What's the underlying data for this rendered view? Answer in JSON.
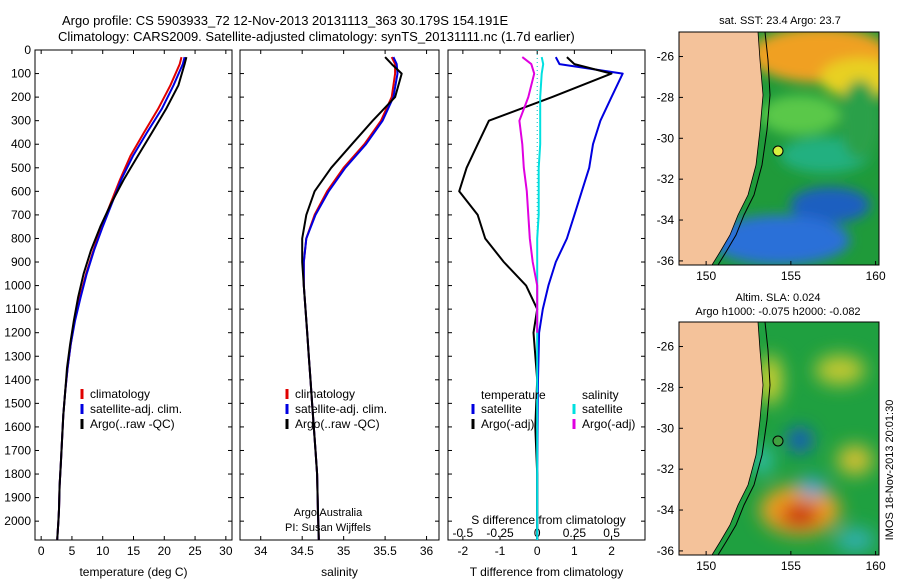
{
  "header": {
    "line1": "Argo profile: CS 5903933_72  12-Nov-2013 20131113_363  30.179S 154.191E",
    "line2": "Climatology: CARS2009. Satellite-adjusted climatology: synTS_20131111.nc (1.7d earlier)"
  },
  "footer": {
    "stamp": "IMOS 18-Nov-2013 20:01:30"
  },
  "colors": {
    "climatology": "#e00000",
    "satellite": "#0000e0",
    "argo": "#000000",
    "salinity_satellite": "#00e0e0",
    "salinity_argo": "#e000e0",
    "land": "#f4c29a"
  },
  "chart_data": [
    {
      "id": "temperature",
      "type": "line",
      "xlabel": "temperature (deg C)",
      "ylabel": "",
      "xlim": [
        -1,
        31
      ],
      "ylim": [
        2080,
        0
      ],
      "xticks": [
        0,
        5,
        10,
        15,
        20,
        25,
        30
      ],
      "yticks": [
        0,
        100,
        200,
        300,
        400,
        500,
        600,
        700,
        800,
        900,
        1000,
        1100,
        1200,
        1300,
        1400,
        1500,
        1600,
        1700,
        1800,
        1900,
        2000
      ],
      "grid": false,
      "legend_position": "lower-left",
      "legend": [
        "climatology",
        "satellite-adj. clim.",
        "Argo(..raw -QC)"
      ],
      "series": [
        {
          "name": "climatology",
          "color": "#e00000",
          "x": [
            22.8,
            22.5,
            21.0,
            19.0,
            16.7,
            14.5,
            12.8,
            11.3,
            9.8,
            8.5,
            7.3,
            6.3,
            5.4,
            4.8,
            4.3,
            3.9,
            3.6,
            3.4,
            3.2,
            3.0,
            2.9,
            2.8,
            2.7,
            2.6
          ],
          "y": [
            30,
            60,
            150,
            250,
            350,
            450,
            550,
            650,
            750,
            850,
            950,
            1050,
            1150,
            1250,
            1350,
            1450,
            1550,
            1650,
            1750,
            1850,
            1950,
            2000,
            2040,
            2080
          ]
        },
        {
          "name": "satellite-adj. clim.",
          "color": "#0000e0",
          "x": [
            23.3,
            23.0,
            21.5,
            19.6,
            17.2,
            14.9,
            13.0,
            11.5,
            10.0,
            8.6,
            7.4,
            6.4,
            5.5,
            4.8,
            4.3,
            3.9,
            3.6,
            3.4,
            3.2,
            3.0,
            2.9,
            2.8,
            2.7,
            2.6
          ],
          "y": [
            30,
            60,
            150,
            250,
            350,
            450,
            550,
            650,
            750,
            850,
            950,
            1050,
            1150,
            1250,
            1350,
            1450,
            1550,
            1650,
            1750,
            1850,
            1950,
            2000,
            2040,
            2080
          ]
        },
        {
          "name": "Argo(..raw -QC)",
          "color": "#000000",
          "x": [
            23.6,
            23.3,
            22.3,
            20.3,
            18.0,
            15.7,
            13.4,
            11.4,
            9.6,
            8.1,
            6.9,
            6.0,
            5.3,
            4.7,
            4.2,
            3.9,
            3.6,
            3.4,
            3.2,
            3.0,
            2.9,
            2.8,
            2.7,
            2.6
          ],
          "y": [
            30,
            60,
            150,
            250,
            350,
            450,
            550,
            650,
            750,
            850,
            950,
            1050,
            1150,
            1250,
            1350,
            1450,
            1550,
            1650,
            1750,
            1850,
            1950,
            2000,
            2040,
            2080
          ]
        }
      ]
    },
    {
      "id": "salinity",
      "type": "line",
      "xlabel": "salinity",
      "xlim": [
        33.75,
        36.15
      ],
      "ylim": [
        2080,
        0
      ],
      "xticks": [
        34,
        34.5,
        35,
        35.5,
        36
      ],
      "grid": false,
      "legend_position": "lower-left",
      "legend": [
        "climatology",
        "satellite-adj. clim.",
        "Argo(..raw -QC)"
      ],
      "annotation": [
        "Argo Australia",
        "PI: Susan Wijffels"
      ],
      "series": [
        {
          "name": "climatology",
          "color": "#e00000",
          "x": [
            35.58,
            35.62,
            35.62,
            35.58,
            35.45,
            35.25,
            35.0,
            34.8,
            34.65,
            34.55,
            34.52,
            34.52,
            34.54,
            34.56,
            34.58,
            34.6,
            34.62,
            34.64,
            34.66,
            34.68,
            34.69,
            34.7
          ],
          "y": [
            30,
            60,
            100,
            200,
            300,
            400,
            500,
            600,
            700,
            800,
            900,
            1000,
            1100,
            1200,
            1300,
            1400,
            1500,
            1600,
            1700,
            1800,
            1950,
            2080
          ]
        },
        {
          "name": "satellite-adj. clim.",
          "color": "#0000e0",
          "x": [
            35.6,
            35.64,
            35.65,
            35.6,
            35.47,
            35.27,
            35.02,
            34.82,
            34.66,
            34.55,
            34.52,
            34.52,
            34.54,
            34.56,
            34.58,
            34.6,
            34.62,
            34.64,
            34.66,
            34.68,
            34.69,
            34.7
          ],
          "y": [
            30,
            60,
            100,
            200,
            300,
            400,
            500,
            600,
            700,
            800,
            900,
            1000,
            1100,
            1200,
            1300,
            1400,
            1500,
            1600,
            1700,
            1800,
            1950,
            2080
          ]
        },
        {
          "name": "Argo(..raw -QC)",
          "color": "#000000",
          "x": [
            35.5,
            35.58,
            35.7,
            35.62,
            35.35,
            35.1,
            34.85,
            34.65,
            34.55,
            34.5,
            34.5,
            34.52,
            34.54,
            34.56,
            34.58,
            34.6,
            34.62,
            34.64,
            34.66,
            34.68,
            34.69,
            34.7
          ],
          "y": [
            30,
            60,
            100,
            200,
            300,
            400,
            500,
            600,
            700,
            800,
            900,
            1000,
            1100,
            1200,
            1300,
            1400,
            1500,
            1600,
            1700,
            1800,
            1950,
            2080
          ]
        }
      ]
    },
    {
      "id": "difference",
      "type": "line",
      "xlabel": "T difference from climatology",
      "top_label": "S difference from climatology",
      "xlim": [
        -2.4,
        2.9
      ],
      "ylim": [
        2080,
        0
      ],
      "xticks": [
        -2,
        -1,
        0,
        1,
        2
      ],
      "top_ticks": [
        -0.5,
        -0.25,
        0,
        0.25,
        0.5
      ],
      "top_tick_labels": [
        "-0.5",
        "-0.25",
        "0",
        "0.25",
        "0.5"
      ],
      "grid": false,
      "legend_position": "lower-center",
      "legend_temperature_title": "temperature",
      "legend_salinity_title": "salinity",
      "legend": [
        "satellite",
        "Argo(-adj)",
        "satellite",
        "Argo(-adj)"
      ],
      "series": [
        {
          "name": "T satellite",
          "color": "#0000e0",
          "x": [
            0.5,
            0.6,
            2.3,
            2.0,
            1.7,
            1.5,
            1.4,
            1.2,
            1.0,
            0.8,
            0.5,
            0.3,
            0.15,
            0.05,
            0.02,
            0.01,
            0.0,
            0.0,
            0.0
          ],
          "y": [
            30,
            60,
            100,
            200,
            300,
            400,
            500,
            600,
            700,
            800,
            900,
            1000,
            1100,
            1200,
            1400,
            1600,
            1800,
            1950,
            2080
          ]
        },
        {
          "name": "T Argo(-adj)",
          "color": "#000000",
          "x": [
            0.8,
            1.0,
            2.0,
            0.4,
            -1.3,
            -1.6,
            -1.9,
            -2.1,
            -1.6,
            -1.4,
            -0.9,
            -0.3,
            0.0,
            -0.1,
            0.0,
            -0.05,
            0.0,
            0.0,
            0.0
          ],
          "y": [
            30,
            60,
            100,
            200,
            300,
            400,
            500,
            600,
            700,
            800,
            900,
            1000,
            1100,
            1200,
            1400,
            1600,
            1800,
            1950,
            2080
          ]
        },
        {
          "name": "S satellite",
          "color": "#00e0e0",
          "x": [
            0.03,
            0.04,
            0.03,
            0.02,
            0.02,
            0.02,
            0.01,
            0.01,
            0.01,
            0.0,
            0.0,
            0.0,
            0.0,
            0.0,
            0.0,
            0.0,
            0.0
          ],
          "y": [
            30,
            60,
            100,
            200,
            300,
            400,
            500,
            600,
            700,
            800,
            1000,
            1200,
            1400,
            1600,
            1800,
            1950,
            2080
          ]
        },
        {
          "name": "S Argo(-adj)",
          "color": "#e000e0",
          "x": [
            -0.1,
            -0.04,
            -0.02,
            -0.06,
            -0.12,
            -0.1,
            -0.09,
            -0.07,
            -0.06,
            -0.05,
            -0.03,
            0.0,
            0.0,
            0.0
          ],
          "y": [
            30,
            60,
            100,
            200,
            300,
            400,
            500,
            600,
            700,
            800,
            900,
            1000,
            1100,
            1200
          ]
        }
      ]
    },
    {
      "id": "sst_map",
      "type": "heatmap",
      "title": "sat. SST: 23.4  Argo: 23.7",
      "xlim": [
        148.4,
        160.2
      ],
      "ylim": [
        -36.2,
        -24.8
      ],
      "xticks": [
        150,
        155,
        160
      ],
      "yticks": [
        -26,
        -28,
        -30,
        -32,
        -34,
        -36
      ],
      "marker": {
        "lon": 154.19,
        "lat": -30.18
      }
    },
    {
      "id": "sla_map",
      "type": "heatmap",
      "title": "Altim. SLA: 0.024",
      "subtitle": "Argo h1000: -0.075 h2000: -0.082",
      "xlim": [
        148.4,
        160.2
      ],
      "ylim": [
        -36.2,
        -24.8
      ],
      "xticks": [
        150,
        155,
        160
      ],
      "yticks": [
        -26,
        -28,
        -30,
        -32,
        -34,
        -36
      ],
      "marker": {
        "lon": 154.19,
        "lat": -30.18
      }
    }
  ]
}
